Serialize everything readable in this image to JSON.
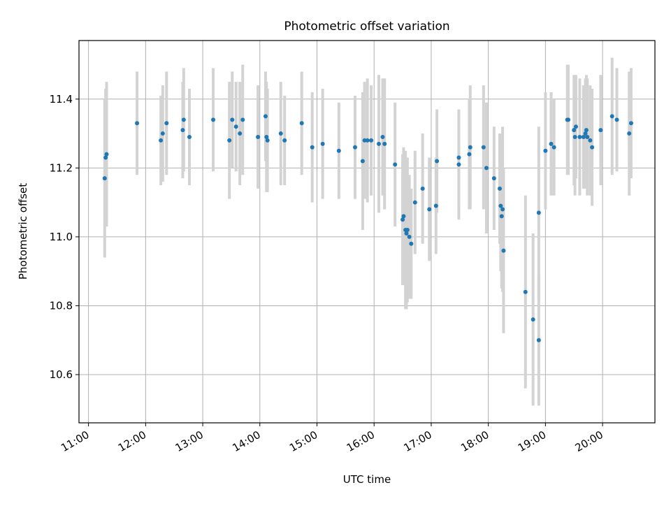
{
  "chart_data": {
    "type": "scatter",
    "title": "Photometric offset variation",
    "xlabel": "UTC time",
    "ylabel": "Photometric offset",
    "x_tick_labels": [
      "11:00",
      "12:00",
      "13:00",
      "14:00",
      "15:00",
      "16:00",
      "17:00",
      "18:00",
      "19:00",
      "20:00"
    ],
    "y_tick_labels": [
      "10.6",
      "10.8",
      "11.0",
      "11.2",
      "11.4"
    ],
    "xlim": [
      "10:50",
      "20:55"
    ],
    "ylim": [
      10.46,
      11.57
    ],
    "grid": true,
    "colors": {
      "marker": "#1f77b4",
      "errorbar": "#d3d3d3",
      "grid": "#b0b0b0"
    },
    "series": [
      {
        "x": [
          "11:17",
          "11:18",
          "11:19",
          "11:51",
          "12:16",
          "12:18",
          "12:22",
          "12:39",
          "12:40",
          "12:46",
          "13:11",
          "13:28",
          "13:31",
          "13:35",
          "13:39",
          "13:42",
          "13:58",
          "14:06",
          "14:07",
          "14:08",
          "14:22",
          "14:26",
          "14:44",
          "14:55",
          "15:06",
          "15:23",
          "15:40",
          "15:48",
          "15:50",
          "15:53",
          "15:57",
          "16:05",
          "16:09",
          "16:11",
          "16:22",
          "16:30",
          "16:31",
          "16:33",
          "16:34",
          "16:35",
          "16:37",
          "16:39",
          "16:43",
          "16:51",
          "16:58",
          "17:05",
          "17:06",
          "17:29",
          "17:29",
          "17:40",
          "17:41",
          "17:55",
          "17:58",
          "18:06",
          "18:12",
          "18:13",
          "18:14",
          "18:15",
          "18:16",
          "18:39",
          "18:47",
          "18:53",
          "18:53",
          "19:00",
          "19:06",
          "19:09",
          "19:23",
          "19:24",
          "19:30",
          "19:31",
          "19:32",
          "19:36",
          "19:40",
          "19:42",
          "19:43",
          "19:44",
          "19:47",
          "19:49",
          "19:58",
          "20:10",
          "20:15",
          "20:28",
          "20:30"
        ],
        "y": [
          11.17,
          11.23,
          11.24,
          11.33,
          11.28,
          11.3,
          11.33,
          11.31,
          11.34,
          11.29,
          11.34,
          11.28,
          11.34,
          11.32,
          11.3,
          11.34,
          11.29,
          11.35,
          11.29,
          11.28,
          11.3,
          11.28,
          11.33,
          11.26,
          11.27,
          11.25,
          11.26,
          11.22,
          11.28,
          11.28,
          11.28,
          11.27,
          11.29,
          11.27,
          11.21,
          11.05,
          11.06,
          11.02,
          11.01,
          11.02,
          11.0,
          10.98,
          11.1,
          11.14,
          11.08,
          11.09,
          11.22,
          11.21,
          11.23,
          11.24,
          11.26,
          11.26,
          11.2,
          11.17,
          11.14,
          11.09,
          11.06,
          11.08,
          10.96,
          10.84,
          10.76,
          10.7,
          11.07,
          11.25,
          11.27,
          11.26,
          11.34,
          11.34,
          11.31,
          11.29,
          11.32,
          11.29,
          11.29,
          11.3,
          11.31,
          11.29,
          11.28,
          11.26,
          11.31,
          11.35,
          11.34,
          11.3,
          11.33
        ],
        "yerr": [
          0.23,
          0.2,
          0.21,
          0.15,
          0.13,
          0.14,
          0.15,
          0.14,
          0.15,
          0.14,
          0.15,
          0.17,
          0.14,
          0.13,
          0.15,
          0.16,
          0.15,
          0.13,
          0.16,
          0.15,
          0.15,
          0.13,
          0.15,
          0.16,
          0.16,
          0.14,
          0.15,
          0.2,
          0.17,
          0.18,
          0.16,
          0.2,
          0.17,
          0.19,
          0.18,
          0.19,
          0.2,
          0.23,
          0.22,
          0.21,
          0.18,
          0.16,
          0.15,
          0.16,
          0.15,
          0.14,
          0.15,
          0.16,
          0.14,
          0.16,
          0.18,
          0.18,
          0.19,
          0.15,
          0.16,
          0.19,
          0.21,
          0.24,
          0.24,
          0.28,
          0.25,
          0.19,
          0.25,
          0.17,
          0.15,
          0.14,
          0.16,
          0.16,
          0.16,
          0.17,
          0.15,
          0.17,
          0.15,
          0.16,
          0.16,
          0.17,
          0.16,
          0.17,
          0.16,
          0.17,
          0.15,
          0.18,
          0.16
        ]
      }
    ]
  }
}
